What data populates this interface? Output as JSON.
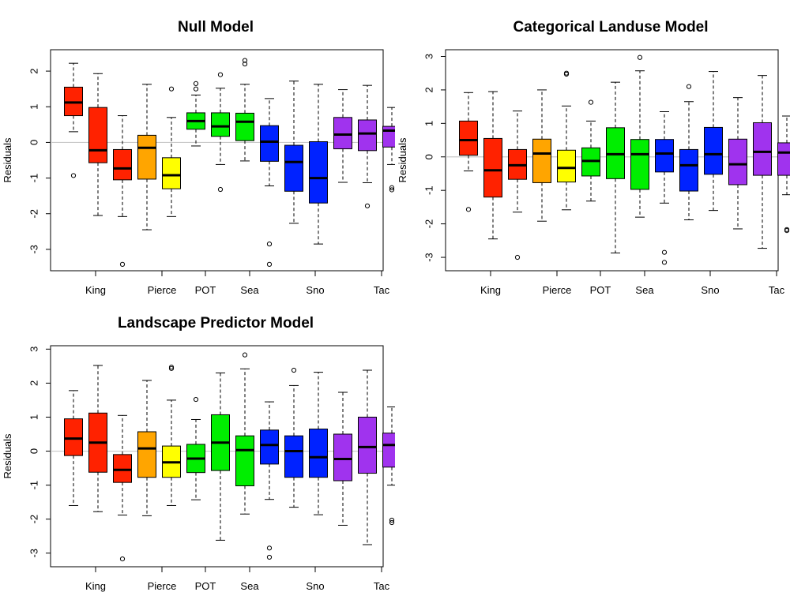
{
  "chart_data": [
    {
      "type": "box",
      "title": "Null Model",
      "ylabel": "Residuals",
      "xlabel": "",
      "ylim": [
        -3.6,
        2.6
      ],
      "yticks": [
        -3,
        -2,
        -1,
        0,
        1,
        2
      ],
      "xtick_labels": [
        "King",
        "Pierce",
        "POT",
        "Sea",
        "Sno",
        "Tac"
      ],
      "reference_line": 0,
      "boxes": [
        {
          "color": "#ff2200",
          "q1": 0.75,
          "median": 1.12,
          "q3": 1.55,
          "whisker_low": 0.3,
          "whisker_high": 2.22,
          "outliers": [
            -0.93
          ]
        },
        {
          "color": "#ff2200",
          "q1": -0.57,
          "median": -0.22,
          "q3": 0.98,
          "whisker_low": -2.05,
          "whisker_high": 1.93,
          "outliers": []
        },
        {
          "color": "#ff2200",
          "q1": -1.05,
          "median": -0.73,
          "q3": -0.2,
          "whisker_low": -2.08,
          "whisker_high": 0.75,
          "outliers": [
            -3.42
          ]
        },
        {
          "color": "#ffa500",
          "q1": -1.03,
          "median": -0.15,
          "q3": 0.2,
          "whisker_low": -2.45,
          "whisker_high": 1.63,
          "outliers": []
        },
        {
          "color": "#ffff00",
          "q1": -1.3,
          "median": -0.92,
          "q3": -0.43,
          "whisker_low": -2.08,
          "whisker_high": 0.7,
          "outliers": [
            1.5
          ]
        },
        {
          "color": "#00ee00",
          "q1": 0.37,
          "median": 0.6,
          "q3": 0.83,
          "whisker_low": -0.1,
          "whisker_high": 1.33,
          "outliers": [
            1.5,
            1.65
          ]
        },
        {
          "color": "#00ee00",
          "q1": 0.17,
          "median": 0.45,
          "q3": 0.83,
          "whisker_low": -0.62,
          "whisker_high": 1.52,
          "outliers": [
            1.9,
            -1.32
          ]
        },
        {
          "color": "#00ee00",
          "q1": 0.05,
          "median": 0.58,
          "q3": 0.82,
          "whisker_low": -0.52,
          "whisker_high": 1.63,
          "outliers": [
            2.2,
            2.3
          ]
        },
        {
          "color": "#0022ff",
          "q1": -0.53,
          "median": 0.02,
          "q3": 0.47,
          "whisker_low": -1.22,
          "whisker_high": 1.23,
          "outliers": [
            -2.85,
            -3.42
          ]
        },
        {
          "color": "#0022ff",
          "q1": -1.37,
          "median": -0.55,
          "q3": -0.08,
          "whisker_low": -2.27,
          "whisker_high": 1.72,
          "outliers": []
        },
        {
          "color": "#0022ff",
          "q1": -1.7,
          "median": -1.0,
          "q3": 0.02,
          "whisker_low": -2.85,
          "whisker_high": 1.63,
          "outliers": []
        },
        {
          "color": "#a033ee",
          "q1": -0.18,
          "median": 0.22,
          "q3": 0.7,
          "whisker_low": -1.12,
          "whisker_high": 1.48,
          "outliers": []
        },
        {
          "color": "#a033ee",
          "q1": -0.23,
          "median": 0.25,
          "q3": 0.63,
          "whisker_low": -1.13,
          "whisker_high": 1.6,
          "outliers": [
            -1.78
          ]
        },
        {
          "color": "#a033ee",
          "q1": -0.13,
          "median": 0.33,
          "q3": 0.45,
          "whisker_low": -0.62,
          "whisker_high": 0.98,
          "outliers": [
            -1.27,
            -1.33
          ]
        }
      ]
    },
    {
      "type": "box",
      "title": "Categorical Landuse Model",
      "ylabel": "Residuals",
      "xlabel": "",
      "ylim": [
        -3.4,
        3.2
      ],
      "yticks": [
        -3,
        -2,
        -1,
        0,
        1,
        2,
        3
      ],
      "xtick_labels": [
        "King",
        "Pierce",
        "POT",
        "Sea",
        "Sno",
        "Tac"
      ],
      "reference_line": 0,
      "boxes": [
        {
          "color": "#ff2200",
          "q1": 0.05,
          "median": 0.5,
          "q3": 1.07,
          "whisker_low": -0.42,
          "whisker_high": 1.92,
          "outliers": [
            -1.57
          ]
        },
        {
          "color": "#ff2200",
          "q1": -1.2,
          "median": -0.4,
          "q3": 0.55,
          "whisker_low": -2.45,
          "whisker_high": 1.95,
          "outliers": []
        },
        {
          "color": "#ff2200",
          "q1": -0.67,
          "median": -0.25,
          "q3": 0.22,
          "whisker_low": -1.65,
          "whisker_high": 1.37,
          "outliers": [
            -3.0
          ]
        },
        {
          "color": "#ffa500",
          "q1": -0.77,
          "median": 0.1,
          "q3": 0.53,
          "whisker_low": -1.92,
          "whisker_high": 2.0,
          "outliers": []
        },
        {
          "color": "#ffff00",
          "q1": -0.75,
          "median": -0.33,
          "q3": 0.2,
          "whisker_low": -1.58,
          "whisker_high": 1.52,
          "outliers": [
            2.47,
            2.5
          ]
        },
        {
          "color": "#00ee00",
          "q1": -0.57,
          "median": -0.12,
          "q3": 0.27,
          "whisker_low": -1.32,
          "whisker_high": 1.07,
          "outliers": [
            1.63
          ]
        },
        {
          "color": "#00ee00",
          "q1": -0.65,
          "median": 0.08,
          "q3": 0.87,
          "whisker_low": -2.87,
          "whisker_high": 2.23,
          "outliers": []
        },
        {
          "color": "#00ee00",
          "q1": -0.97,
          "median": 0.08,
          "q3": 0.52,
          "whisker_low": -1.8,
          "whisker_high": 2.57,
          "outliers": [
            2.97
          ]
        },
        {
          "color": "#0022ff",
          "q1": -0.45,
          "median": 0.1,
          "q3": 0.52,
          "whisker_low": -1.38,
          "whisker_high": 1.35,
          "outliers": [
            -2.85,
            -3.15
          ]
        },
        {
          "color": "#0022ff",
          "q1": -1.02,
          "median": -0.25,
          "q3": 0.22,
          "whisker_low": -1.88,
          "whisker_high": 1.65,
          "outliers": [
            2.1
          ]
        },
        {
          "color": "#0022ff",
          "q1": -0.52,
          "median": 0.08,
          "q3": 0.88,
          "whisker_low": -1.6,
          "whisker_high": 2.55,
          "outliers": []
        },
        {
          "color": "#a033ee",
          "q1": -0.83,
          "median": -0.22,
          "q3": 0.53,
          "whisker_low": -2.15,
          "whisker_high": 1.77,
          "outliers": []
        },
        {
          "color": "#a033ee",
          "q1": -0.55,
          "median": 0.15,
          "q3": 1.02,
          "whisker_low": -2.73,
          "whisker_high": 2.43,
          "outliers": []
        },
        {
          "color": "#a033ee",
          "q1": -0.55,
          "median": 0.13,
          "q3": 0.42,
          "whisker_low": -1.13,
          "whisker_high": 1.22,
          "outliers": [
            -2.17,
            -2.2
          ]
        }
      ]
    },
    {
      "type": "box",
      "title": "Landscape Predictor Model",
      "ylabel": "Residuals",
      "xlabel": "",
      "ylim": [
        -3.4,
        3.1
      ],
      "yticks": [
        -3,
        -2,
        -1,
        0,
        1,
        2,
        3
      ],
      "xtick_labels": [
        "King",
        "Pierce",
        "POT",
        "Sea",
        "Sno",
        "Tac"
      ],
      "reference_line": 0,
      "boxes": [
        {
          "color": "#ff2200",
          "q1": -0.13,
          "median": 0.37,
          "q3": 0.95,
          "whisker_low": -1.6,
          "whisker_high": 1.78,
          "outliers": []
        },
        {
          "color": "#ff2200",
          "q1": -0.62,
          "median": 0.25,
          "q3": 1.12,
          "whisker_low": -1.78,
          "whisker_high": 2.52,
          "outliers": []
        },
        {
          "color": "#ff2200",
          "q1": -0.92,
          "median": -0.55,
          "q3": -0.1,
          "whisker_low": -1.88,
          "whisker_high": 1.05,
          "outliers": [
            -3.17
          ]
        },
        {
          "color": "#ffa500",
          "q1": -0.77,
          "median": 0.08,
          "q3": 0.57,
          "whisker_low": -1.9,
          "whisker_high": 2.08,
          "outliers": []
        },
        {
          "color": "#ffff00",
          "q1": -0.77,
          "median": -0.33,
          "q3": 0.15,
          "whisker_low": -1.6,
          "whisker_high": 1.5,
          "outliers": [
            2.43,
            2.47
          ]
        },
        {
          "color": "#00ee00",
          "q1": -0.63,
          "median": -0.22,
          "q3": 0.2,
          "whisker_low": -1.43,
          "whisker_high": 0.93,
          "outliers": [
            1.52
          ]
        },
        {
          "color": "#00ee00",
          "q1": -0.57,
          "median": 0.25,
          "q3": 1.07,
          "whisker_low": -2.62,
          "whisker_high": 2.3,
          "outliers": []
        },
        {
          "color": "#00ee00",
          "q1": -1.02,
          "median": 0.03,
          "q3": 0.45,
          "whisker_low": -1.85,
          "whisker_high": 2.42,
          "outliers": [
            2.83
          ]
        },
        {
          "color": "#0022ff",
          "q1": -0.38,
          "median": 0.18,
          "q3": 0.62,
          "whisker_low": -1.42,
          "whisker_high": 1.45,
          "outliers": [
            -2.85,
            -3.12
          ]
        },
        {
          "color": "#0022ff",
          "q1": -0.77,
          "median": 0.0,
          "q3": 0.45,
          "whisker_low": -1.65,
          "whisker_high": 1.93,
          "outliers": [
            2.38
          ]
        },
        {
          "color": "#0022ff",
          "q1": -0.77,
          "median": -0.18,
          "q3": 0.65,
          "whisker_low": -1.87,
          "whisker_high": 2.32,
          "outliers": []
        },
        {
          "color": "#a033ee",
          "q1": -0.87,
          "median": -0.23,
          "q3": 0.5,
          "whisker_low": -2.18,
          "whisker_high": 1.73,
          "outliers": []
        },
        {
          "color": "#a033ee",
          "q1": -0.65,
          "median": 0.12,
          "q3": 1.0,
          "whisker_low": -2.75,
          "whisker_high": 2.38,
          "outliers": []
        },
        {
          "color": "#a033ee",
          "q1": -0.47,
          "median": 0.18,
          "q3": 0.53,
          "whisker_low": -1.0,
          "whisker_high": 1.3,
          "outliers": [
            -2.03,
            -2.1
          ]
        }
      ]
    }
  ]
}
